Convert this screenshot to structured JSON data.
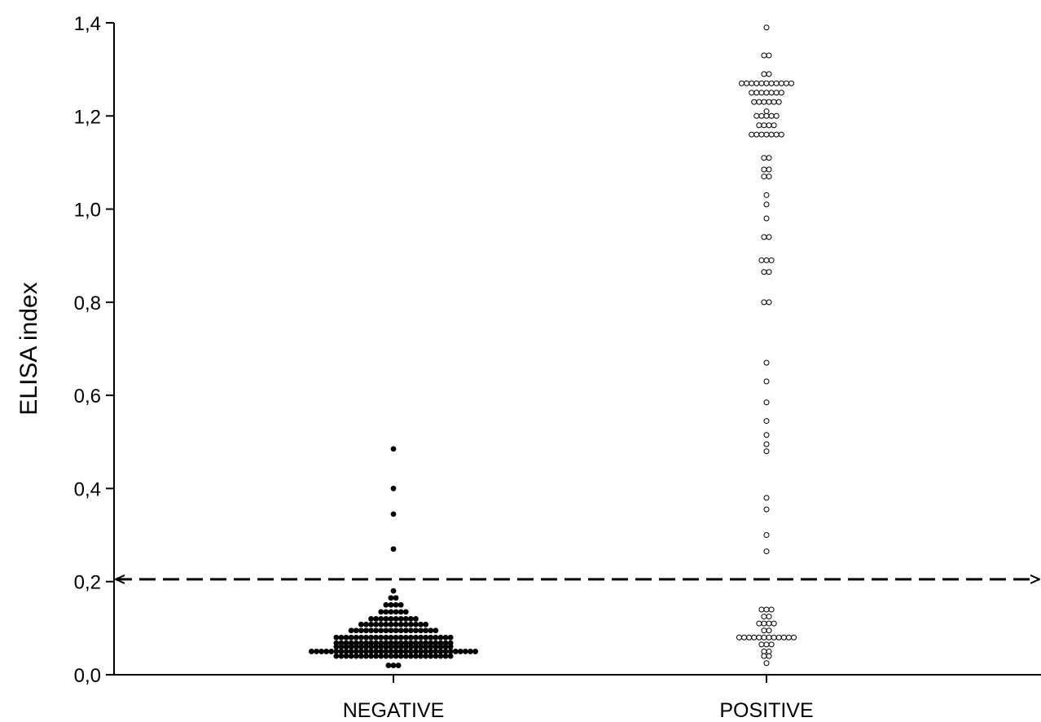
{
  "chart_data": {
    "type": "scatter",
    "subtype": "dot-plot",
    "title": "",
    "xlabel": "",
    "ylabel": "ELISA index",
    "ylim": [
      0,
      1.4
    ],
    "yticks": [
      "0,0",
      "0,2",
      "0,4",
      "0,6",
      "0,8",
      "1,0",
      "1,2",
      "1,4"
    ],
    "categories": [
      "NEGATIVE",
      "POSITIVE"
    ],
    "grid": false,
    "legend": "none",
    "cutoff": {
      "value": 0.205,
      "style": "dashed",
      "color": "#000000"
    },
    "series": [
      {
        "category": "NEGATIVE",
        "marker": "filled",
        "color": "#000000",
        "groups": [
          {
            "value": 0.485,
            "count": 1
          },
          {
            "value": 0.4,
            "count": 1
          },
          {
            "value": 0.345,
            "count": 1
          },
          {
            "value": 0.27,
            "count": 1
          },
          {
            "value": 0.18,
            "count": 1
          },
          {
            "value": 0.165,
            "count": 2
          },
          {
            "value": 0.15,
            "count": 4
          },
          {
            "value": 0.135,
            "count": 6
          },
          {
            "value": 0.12,
            "count": 10
          },
          {
            "value": 0.108,
            "count": 14
          },
          {
            "value": 0.095,
            "count": 18
          },
          {
            "value": 0.08,
            "count": 24
          },
          {
            "value": 0.068,
            "count": 24
          },
          {
            "value": 0.06,
            "count": 24
          },
          {
            "value": 0.05,
            "count": 34
          },
          {
            "value": 0.04,
            "count": 24
          },
          {
            "value": 0.02,
            "count": 3
          }
        ]
      },
      {
        "category": "POSITIVE",
        "marker": "open",
        "color": "#000000",
        "groups": [
          {
            "value": 1.39,
            "count": 1
          },
          {
            "value": 1.33,
            "count": 2
          },
          {
            "value": 1.29,
            "count": 2
          },
          {
            "value": 1.27,
            "count": 11
          },
          {
            "value": 1.25,
            "count": 7
          },
          {
            "value": 1.23,
            "count": 6
          },
          {
            "value": 1.21,
            "count": 1
          },
          {
            "value": 1.2,
            "count": 5
          },
          {
            "value": 1.18,
            "count": 4
          },
          {
            "value": 1.16,
            "count": 7
          },
          {
            "value": 1.11,
            "count": 2
          },
          {
            "value": 1.085,
            "count": 2
          },
          {
            "value": 1.07,
            "count": 2
          },
          {
            "value": 1.03,
            "count": 1
          },
          {
            "value": 1.01,
            "count": 1
          },
          {
            "value": 0.98,
            "count": 1
          },
          {
            "value": 0.94,
            "count": 2
          },
          {
            "value": 0.89,
            "count": 3
          },
          {
            "value": 0.865,
            "count": 2
          },
          {
            "value": 0.8,
            "count": 2
          },
          {
            "value": 0.67,
            "count": 1
          },
          {
            "value": 0.63,
            "count": 1
          },
          {
            "value": 0.585,
            "count": 1
          },
          {
            "value": 0.545,
            "count": 1
          },
          {
            "value": 0.515,
            "count": 1
          },
          {
            "value": 0.495,
            "count": 1
          },
          {
            "value": 0.48,
            "count": 1
          },
          {
            "value": 0.38,
            "count": 1
          },
          {
            "value": 0.355,
            "count": 1
          },
          {
            "value": 0.3,
            "count": 1
          },
          {
            "value": 0.265,
            "count": 1
          },
          {
            "value": 0.14,
            "count": 3
          },
          {
            "value": 0.125,
            "count": 2
          },
          {
            "value": 0.11,
            "count": 4
          },
          {
            "value": 0.095,
            "count": 2
          },
          {
            "value": 0.08,
            "count": 12
          },
          {
            "value": 0.065,
            "count": 3
          },
          {
            "value": 0.05,
            "count": 2
          },
          {
            "value": 0.04,
            "count": 2
          },
          {
            "value": 0.025,
            "count": 1
          }
        ]
      }
    ]
  }
}
